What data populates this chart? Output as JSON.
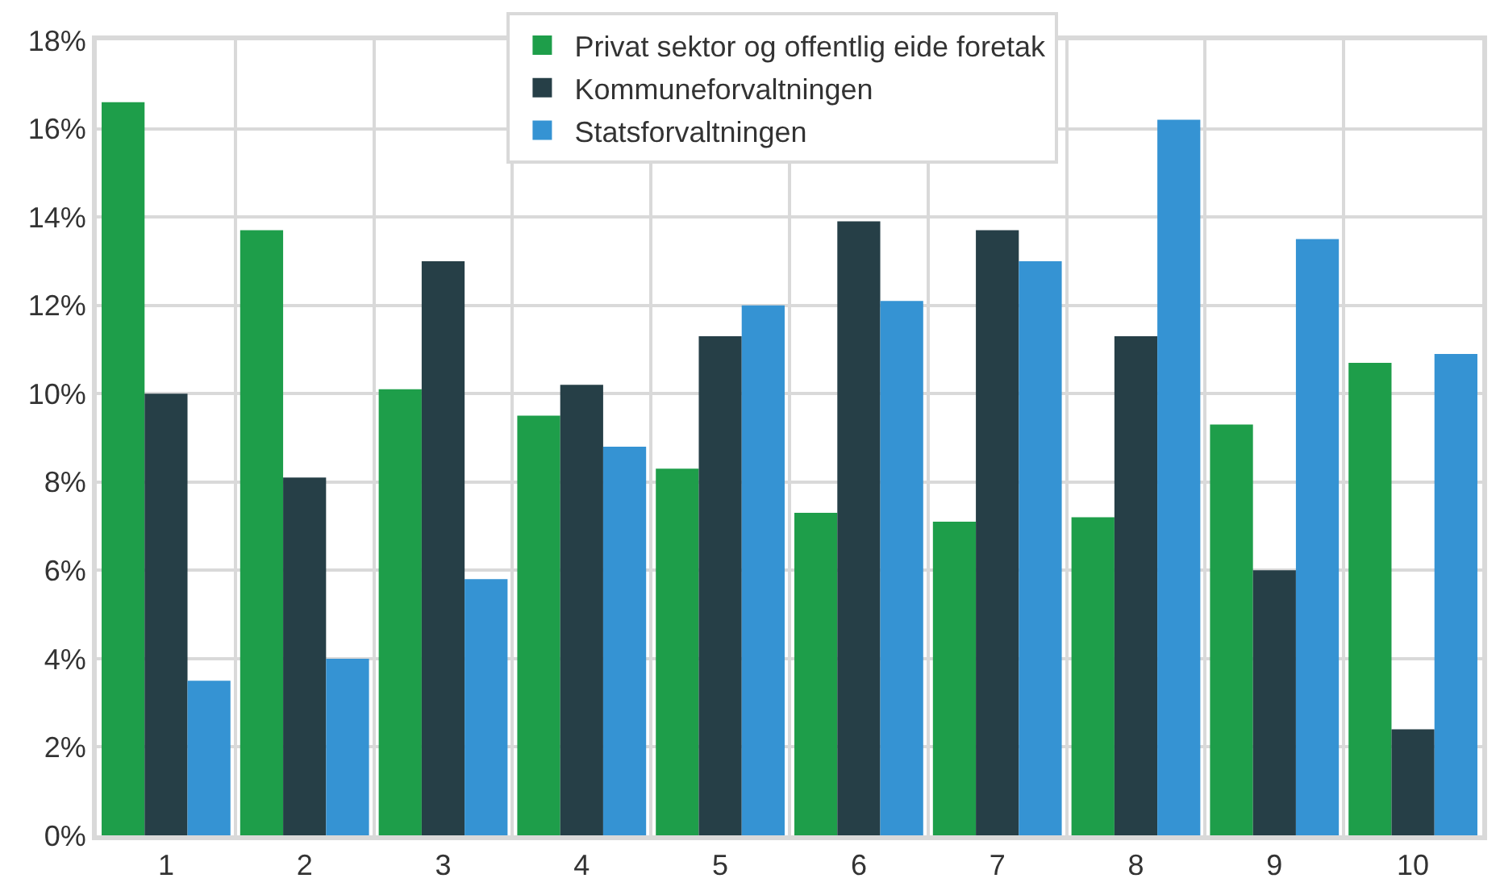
{
  "chart_data": {
    "type": "bar",
    "categories": [
      "1",
      "2",
      "3",
      "4",
      "5",
      "6",
      "7",
      "8",
      "9",
      "10"
    ],
    "series": [
      {
        "name": "Privat sektor og offentlig eide foretak",
        "color": "#1e9e4a",
        "values": [
          16.6,
          13.7,
          10.1,
          9.5,
          8.3,
          7.3,
          7.1,
          7.2,
          9.3,
          10.7
        ]
      },
      {
        "name": "Kommuneforvaltningen",
        "color": "#263f47",
        "values": [
          10.0,
          8.1,
          13.0,
          10.2,
          11.3,
          13.9,
          13.7,
          11.3,
          6.0,
          2.4
        ]
      },
      {
        "name": "Statsforvaltningen",
        "color": "#3593d3",
        "values": [
          3.5,
          4.0,
          5.8,
          8.8,
          12.0,
          12.1,
          13.0,
          16.2,
          13.5,
          10.9
        ]
      }
    ],
    "ylim": [
      0,
      18
    ],
    "yticks": [
      {
        "value": 0,
        "label": "0%"
      },
      {
        "value": 2,
        "label": "2%"
      },
      {
        "value": 4,
        "label": "4%"
      },
      {
        "value": 6,
        "label": "6%"
      },
      {
        "value": 8,
        "label": "8%"
      },
      {
        "value": 10,
        "label": "10%"
      },
      {
        "value": 12,
        "label": "12%"
      },
      {
        "value": 14,
        "label": "14%"
      },
      {
        "value": 16,
        "label": "16%"
      },
      {
        "value": 18,
        "label": "18%"
      }
    ],
    "grid": true,
    "legend": "top"
  }
}
